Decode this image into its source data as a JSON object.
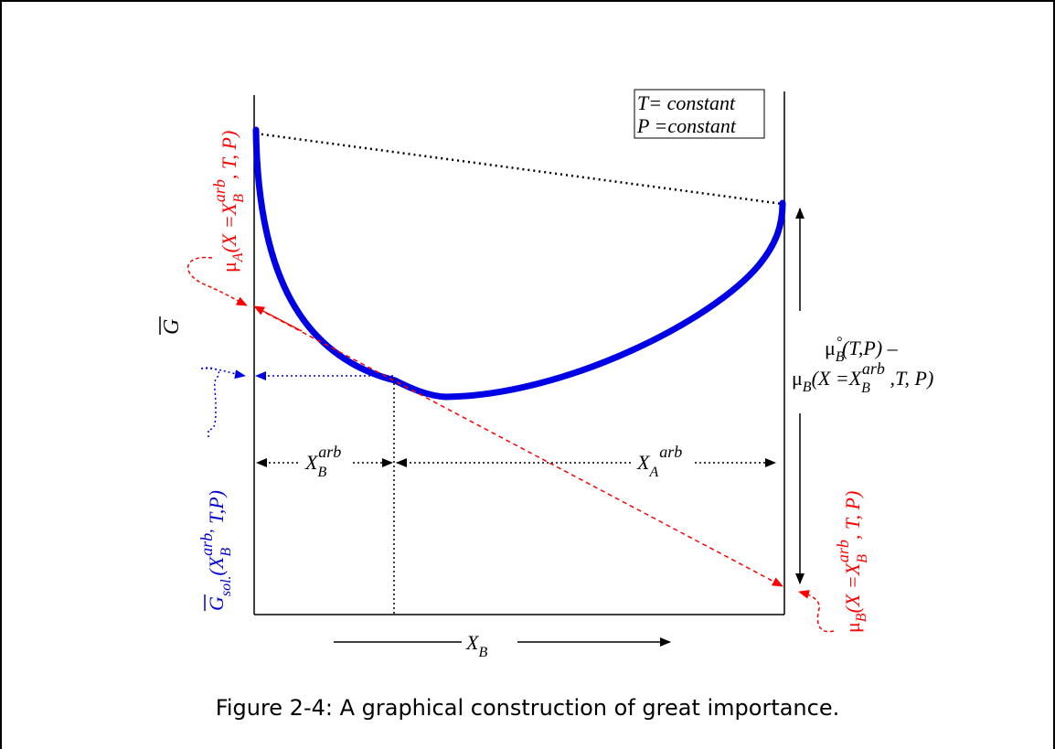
{
  "figure": {
    "box_line1": "T= constant",
    "box_line2": "P =constant",
    "y_axis_label": "G",
    "x_axis_label": "X",
    "x_axis_sub": "B",
    "xb_label": "X",
    "xb_sub": "B",
    "xb_sup": "arb",
    "xa_label": "X",
    "xa_sub": "A",
    "xa_sup": "arb",
    "mu_a": {
      "mu": "μ",
      "sub": "A",
      "open": "(X =X",
      "xsub": "B",
      "xsup": "arb",
      "close": ", T, P)"
    },
    "mu_b": {
      "mu": "μ",
      "sub": "B",
      "open": "(X =X",
      "xsub": "B",
      "xsup": "arb",
      "close": ", T, P)"
    },
    "gsol": {
      "g": "G",
      "sub": "sol.",
      "open": "(X",
      "xsub": "B",
      "xsup": "arb,",
      "close": " T,P)"
    },
    "diff_line1": {
      "mu": "μ",
      "sub": "B",
      "sup": "°",
      "rest": "(T,P) –"
    },
    "diff_line2": {
      "mu": "μ",
      "sub": "B",
      "open": "(X =X",
      "xsub": "B",
      "xsup": "arb",
      "close": " ,T, P)"
    }
  },
  "colors": {
    "curve": "#0000e6",
    "tangent": "#ff0000",
    "blue_text": "#0000cc",
    "red_text": "#ff0000"
  },
  "caption": "Figure 2-4: A graphical construction of great importance."
}
